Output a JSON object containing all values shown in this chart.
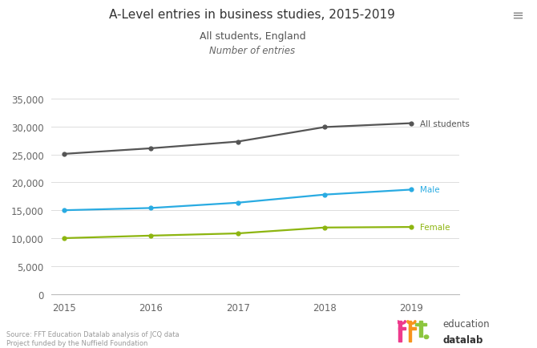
{
  "title": "A-Level entries in business studies, 2015-2019",
  "subtitle1": "All students, England",
  "subtitle2": "Number of entries",
  "years": [
    2015,
    2016,
    2017,
    2018,
    2019
  ],
  "all_students": [
    25100,
    26100,
    27300,
    29900,
    30600
  ],
  "male": [
    15000,
    15400,
    16350,
    17800,
    18700
  ],
  "female": [
    10000,
    10450,
    10850,
    11900,
    12000
  ],
  "colors": {
    "all_students": "#555555",
    "male": "#29ABE2",
    "female": "#8DB510"
  },
  "ylim": [
    0,
    37500
  ],
  "yticks": [
    0,
    5000,
    10000,
    15000,
    20000,
    25000,
    30000,
    35000
  ],
  "background_color": "#FFFFFF",
  "grid_color": "#DDDDDD",
  "source_text": "Source: FFT Education Datalab analysis of JCQ data\nProject funded by the Nuffield Foundation",
  "label_all": "All students",
  "label_male": "Male",
  "label_female": "Female",
  "menu_icon": "≡",
  "fft_colors": {
    "pink": "#EE3A8C",
    "orange": "#F7941D",
    "green": "#8DC63F",
    "teal": "#00AEEF"
  }
}
